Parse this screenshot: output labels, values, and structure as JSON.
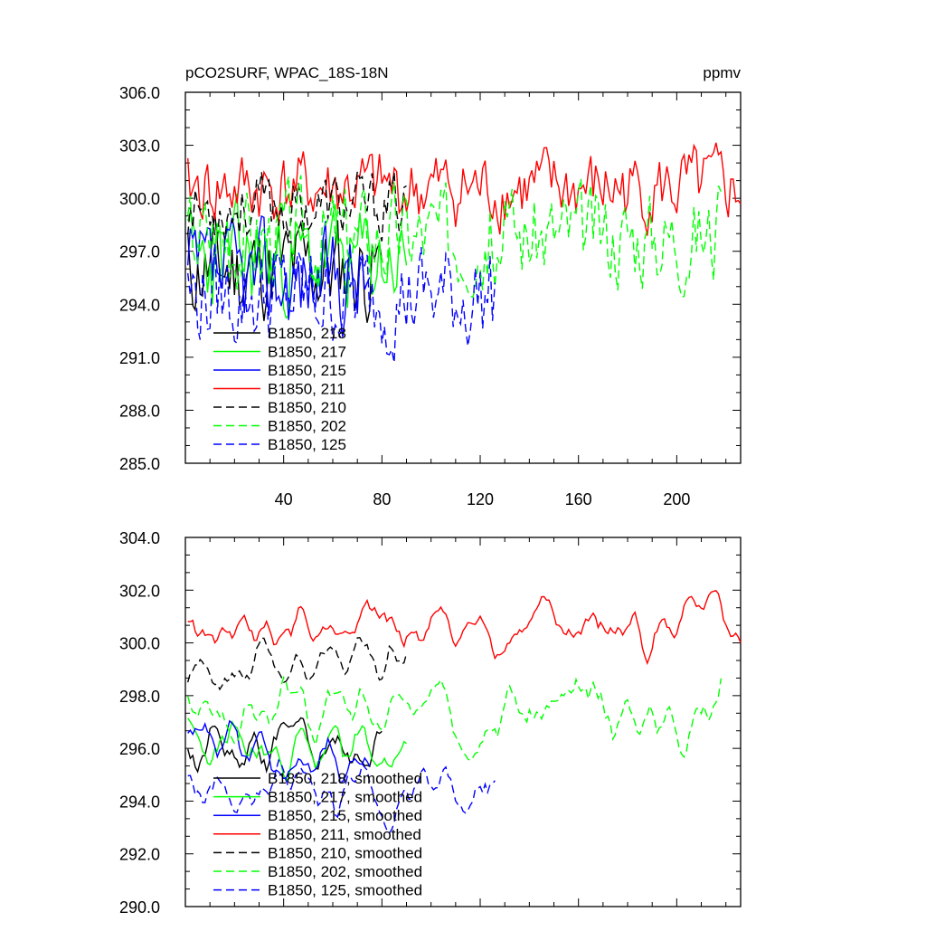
{
  "chart_data": [
    {
      "type": "line",
      "title": "pCO2SURF, WPAC_18S-18N",
      "units_label": "ppmv",
      "xlabel": "",
      "ylabel": "",
      "xlim": [
        0,
        226
      ],
      "ylim": [
        285.0,
        306.0
      ],
      "x_ticks": [
        40,
        80,
        120,
        160,
        200
      ],
      "y_ticks": [
        285.0,
        288.0,
        291.0,
        294.0,
        297.0,
        300.0,
        303.0,
        306.0
      ],
      "y_tick_labels": [
        "285.0",
        "288.0",
        "291.0",
        "294.0",
        "297.0",
        "300.0",
        "303.0",
        "306.0"
      ],
      "legend_position": "bottom-left",
      "series": [
        {
          "name": "B1850, 218",
          "color": "#000000",
          "dash": "solid",
          "x_start": 1,
          "x_end": 80,
          "mean": 296.0,
          "amp": 3.2,
          "seed": 11
        },
        {
          "name": "B1850, 217",
          "color": "#00ff00",
          "dash": "solid",
          "x_start": 1,
          "x_end": 90,
          "mean": 296.5,
          "amp": 3.2,
          "seed": 23
        },
        {
          "name": "B1850, 215",
          "color": "#0000ff",
          "dash": "solid",
          "x_start": 1,
          "x_end": 75,
          "mean": 295.5,
          "amp": 3.2,
          "seed": 37
        },
        {
          "name": "B1850, 211",
          "color": "#ff0000",
          "dash": "solid",
          "x_start": 1,
          "x_end": 226,
          "mean": 300.5,
          "amp": 2.3,
          "seed": 41
        },
        {
          "name": "B1850, 210",
          "color": "#000000",
          "dash": "dashed",
          "x_start": 1,
          "x_end": 90,
          "mean": 299.5,
          "amp": 2.0,
          "seed": 53
        },
        {
          "name": "B1850, 202",
          "color": "#00ff00",
          "dash": "dashed",
          "x_start": 1,
          "x_end": 218,
          "mean": 298.0,
          "amp": 3.0,
          "seed": 67
        },
        {
          "name": "B1850, 125",
          "color": "#0000ff",
          "dash": "dashed",
          "x_start": 1,
          "x_end": 126,
          "mean": 294.5,
          "amp": 3.2,
          "seed": 79
        }
      ]
    },
    {
      "type": "line",
      "title": "",
      "xlabel": "",
      "ylabel": "",
      "xlim": [
        0,
        226
      ],
      "ylim": [
        290.0,
        304.0
      ],
      "x_ticks": [
        40,
        80,
        120,
        160,
        200
      ],
      "y_ticks": [
        290.0,
        292.0,
        294.0,
        296.0,
        298.0,
        300.0,
        302.0,
        304.0
      ],
      "y_tick_labels": [
        "290.0",
        "292.0",
        "294.0",
        "296.0",
        "298.0",
        "300.0",
        "302.0",
        "304.0"
      ],
      "legend_position": "bottom-left",
      "series": [
        {
          "name": "B1850, 218, smoothed",
          "color": "#000000",
          "dash": "solid",
          "x_start": 1,
          "x_end": 80,
          "mean": 296.0,
          "amp": 2.0,
          "seed": 11
        },
        {
          "name": "B1850, 217, smoothed",
          "color": "#00ff00",
          "dash": "solid",
          "x_start": 1,
          "x_end": 90,
          "mean": 295.8,
          "amp": 1.8,
          "seed": 23
        },
        {
          "name": "B1850, 215, smoothed",
          "color": "#0000ff",
          "dash": "solid",
          "x_start": 1,
          "x_end": 75,
          "mean": 295.5,
          "amp": 1.8,
          "seed": 37
        },
        {
          "name": "B1850, 211, smoothed",
          "color": "#ff0000",
          "dash": "solid",
          "x_start": 1,
          "x_end": 226,
          "mean": 300.5,
          "amp": 1.6,
          "seed": 41
        },
        {
          "name": "B1850, 210, smoothed",
          "color": "#000000",
          "dash": "dashed",
          "x_start": 1,
          "x_end": 90,
          "mean": 299.2,
          "amp": 1.5,
          "seed": 53
        },
        {
          "name": "B1850, 202, smoothed",
          "color": "#00ff00",
          "dash": "dashed",
          "x_start": 1,
          "x_end": 218,
          "mean": 297.5,
          "amp": 1.8,
          "seed": 67
        },
        {
          "name": "B1850, 125, smoothed",
          "color": "#0000ff",
          "dash": "dashed",
          "x_start": 1,
          "x_end": 126,
          "mean": 294.5,
          "amp": 1.8,
          "seed": 79
        }
      ]
    }
  ]
}
